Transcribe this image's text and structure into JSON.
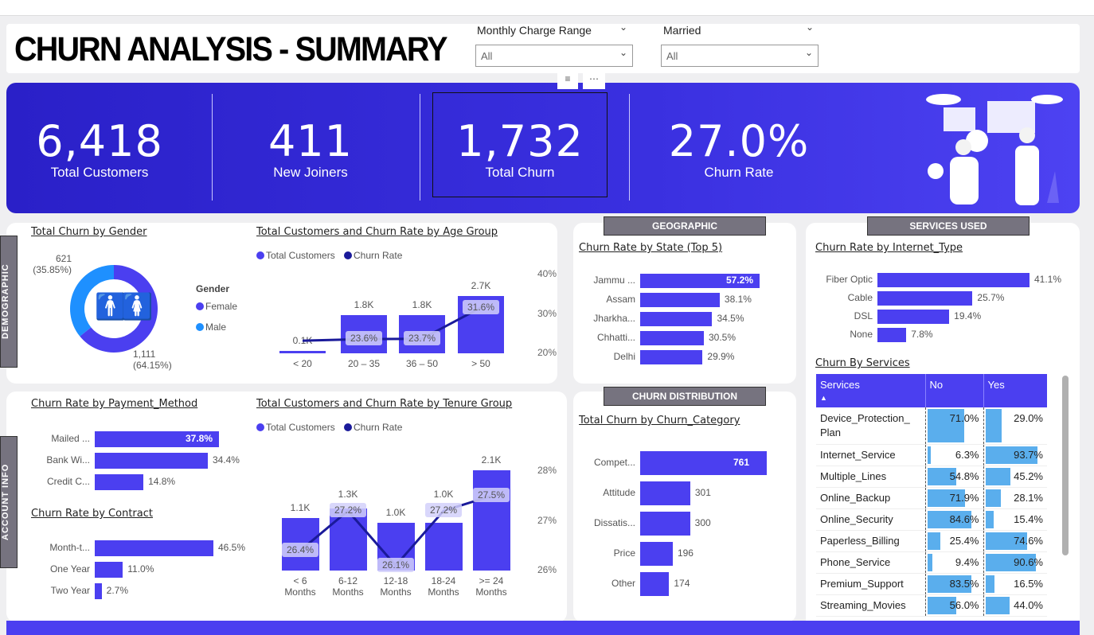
{
  "header": {
    "title": "CHURN ANALYSIS - SUMMARY",
    "slicers": [
      {
        "label": "Monthly Charge Range",
        "value": "All"
      },
      {
        "label": "Married",
        "value": "All"
      }
    ]
  },
  "kpis": [
    {
      "value": "6,418",
      "label": "Total Customers"
    },
    {
      "value": "411",
      "label": "New Joiners"
    },
    {
      "value": "1,732",
      "label": "Total Churn"
    },
    {
      "value": "27.0%",
      "label": "Churn Rate"
    }
  ],
  "sections": {
    "demographic": "DEMOGRAPHIC",
    "account": "ACCOUNT INFO",
    "geographic": "GEOGRAPHIC",
    "services": "SERVICES USED",
    "distribution": "CHURN DISTRIBUTION"
  },
  "colors": {
    "primary": "#4b3ff0",
    "dark": "#1a1a9a",
    "male": "#1e90ff",
    "table_bar": "#5aaeed",
    "section": "#76737f"
  },
  "chart_data": [
    {
      "id": "gender",
      "type": "pie",
      "title": "Total Churn by Gender",
      "legend_title": "Gender",
      "legend": "right",
      "slices": [
        {
          "name": "Female",
          "value": 1111,
          "pct": "64.15%",
          "label": "1,111",
          "color": "#4b3ff0"
        },
        {
          "name": "Male",
          "value": 621,
          "pct": "35.85%",
          "label": "621",
          "color": "#1e90ff"
        }
      ]
    },
    {
      "id": "age",
      "type": "bar",
      "title": "Total Customers and Churn Rate by Age Group",
      "legend": [
        "Total Customers",
        "Churn Rate"
      ],
      "categories": [
        "< 20",
        "20 – 35",
        "36 – 50",
        "> 50"
      ],
      "series": [
        {
          "name": "Total Customers",
          "values": [
            0.1,
            1.8,
            1.8,
            2.7
          ],
          "labels": [
            "0.1K",
            "1.8K",
            "1.8K",
            "2.7K"
          ]
        },
        {
          "name": "Churn Rate",
          "values": [
            23.2,
            23.6,
            23.7,
            31.6
          ],
          "labels": [
            "",
            "23.6%",
            "23.7%",
            "31.6%"
          ]
        }
      ],
      "y2ticks": [
        "40%",
        "30%",
        "20%"
      ],
      "y2lim": [
        20,
        40
      ]
    },
    {
      "id": "state",
      "type": "bar",
      "title": "Churn Rate by State (Top 5)",
      "categories": [
        "Jammu ...",
        "Assam",
        "Jharkha...",
        "Chhatti...",
        "Delhi"
      ],
      "values": [
        57.2,
        38.1,
        34.5,
        30.5,
        29.9
      ],
      "labels": [
        "57.2%",
        "38.1%",
        "34.5%",
        "30.5%",
        "29.9%"
      ]
    },
    {
      "id": "internet",
      "type": "bar",
      "title": "Churn Rate by Internet_Type",
      "categories": [
        "Fiber Optic",
        "Cable",
        "DSL",
        "None"
      ],
      "values": [
        41.1,
        25.7,
        19.4,
        7.8
      ],
      "labels": [
        "41.1%",
        "25.7%",
        "19.4%",
        "7.8%"
      ]
    },
    {
      "id": "payment",
      "type": "bar",
      "title": "Churn Rate by Payment_Method",
      "categories": [
        "Mailed ...",
        "Bank Wi...",
        "Credit C..."
      ],
      "values": [
        37.8,
        34.4,
        14.8
      ],
      "labels": [
        "37.8%",
        "34.4%",
        "14.8%"
      ]
    },
    {
      "id": "contract",
      "type": "bar",
      "title": "Churn Rate by Contract",
      "categories": [
        "Month-t...",
        "One Year",
        "Two Year"
      ],
      "values": [
        46.5,
        11.0,
        2.7
      ],
      "labels": [
        "46.5%",
        "11.0%",
        "2.7%"
      ]
    },
    {
      "id": "tenure",
      "type": "bar",
      "title": "Total Customers and Churn Rate by Tenure Group",
      "legend": [
        "Total Customers",
        "Churn Rate"
      ],
      "categories": [
        "< 6 Months",
        "6-12 Months",
        "12-18 Months",
        "18-24 Months",
        ">= 24 Months"
      ],
      "series": [
        {
          "name": "Total Customers",
          "values": [
            1.1,
            1.3,
            1.0,
            1.0,
            2.1
          ],
          "labels": [
            "1.1K",
            "1.3K",
            "1.0K",
            "1.0K",
            "2.1K"
          ]
        },
        {
          "name": "Churn Rate",
          "values": [
            26.4,
            27.2,
            26.1,
            27.2,
            27.5
          ],
          "labels": [
            "26.4%",
            "27.2%",
            "26.1%",
            "27.2%",
            "27.5%"
          ]
        }
      ],
      "y2ticks": [
        "28%",
        "27%",
        "26%"
      ],
      "y2lim": [
        26,
        28
      ]
    },
    {
      "id": "category",
      "type": "bar",
      "title": "Total Churn by Churn_Category",
      "categories": [
        "Compet...",
        "Attitude",
        "Dissatis...",
        "Price",
        "Other"
      ],
      "values": [
        761,
        301,
        300,
        196,
        174
      ],
      "labels": [
        "761",
        "301",
        "300",
        "196",
        "174"
      ]
    },
    {
      "id": "services",
      "type": "table",
      "title": "Churn By Services",
      "columns": [
        "Services",
        "No",
        "Yes"
      ],
      "rows": [
        [
          "Device_Protection_ Plan",
          71.0,
          29.0
        ],
        [
          "Internet_Service",
          6.3,
          93.7
        ],
        [
          "Multiple_Lines",
          54.8,
          45.2
        ],
        [
          "Online_Backup",
          71.9,
          28.1
        ],
        [
          "Online_Security",
          84.6,
          15.4
        ],
        [
          "Paperless_Billing",
          25.4,
          74.6
        ],
        [
          "Phone_Service",
          9.4,
          90.6
        ],
        [
          "Premium_Support",
          83.5,
          16.5
        ],
        [
          "Streaming_Movies",
          56.0,
          44.0
        ]
      ]
    }
  ]
}
